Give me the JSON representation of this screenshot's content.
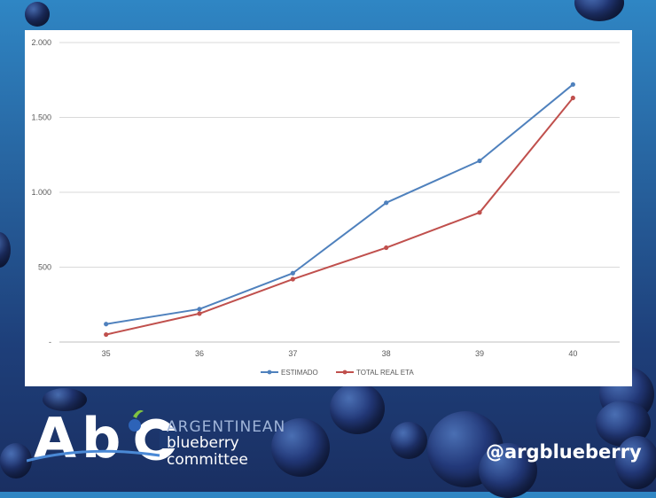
{
  "chart_data": {
    "type": "line",
    "categories": [
      "35",
      "36",
      "37",
      "38",
      "39",
      "40"
    ],
    "series": [
      {
        "name": "ESTIMADO",
        "color": "#4f81bd",
        "values": [
          120,
          220,
          460,
          930,
          1210,
          1720
        ]
      },
      {
        "name": "TOTAL REAL ETA",
        "color": "#c0504d",
        "values": [
          50,
          190,
          420,
          630,
          865,
          1630
        ]
      }
    ],
    "ylim": [
      0,
      2000
    ],
    "yticks": [
      0,
      500,
      1000,
      1500,
      2000
    ],
    "ytick_labels": [
      "-",
      "500",
      "1.000",
      "1.500",
      "2.000"
    ],
    "grid": true,
    "legend_position": "bottom"
  },
  "branding": {
    "logo_letters": "Abc",
    "logo_line1": "ARGENTINEAN",
    "logo_line2": "blueberry",
    "logo_line3": "committee",
    "handle": "@argblueberry"
  }
}
